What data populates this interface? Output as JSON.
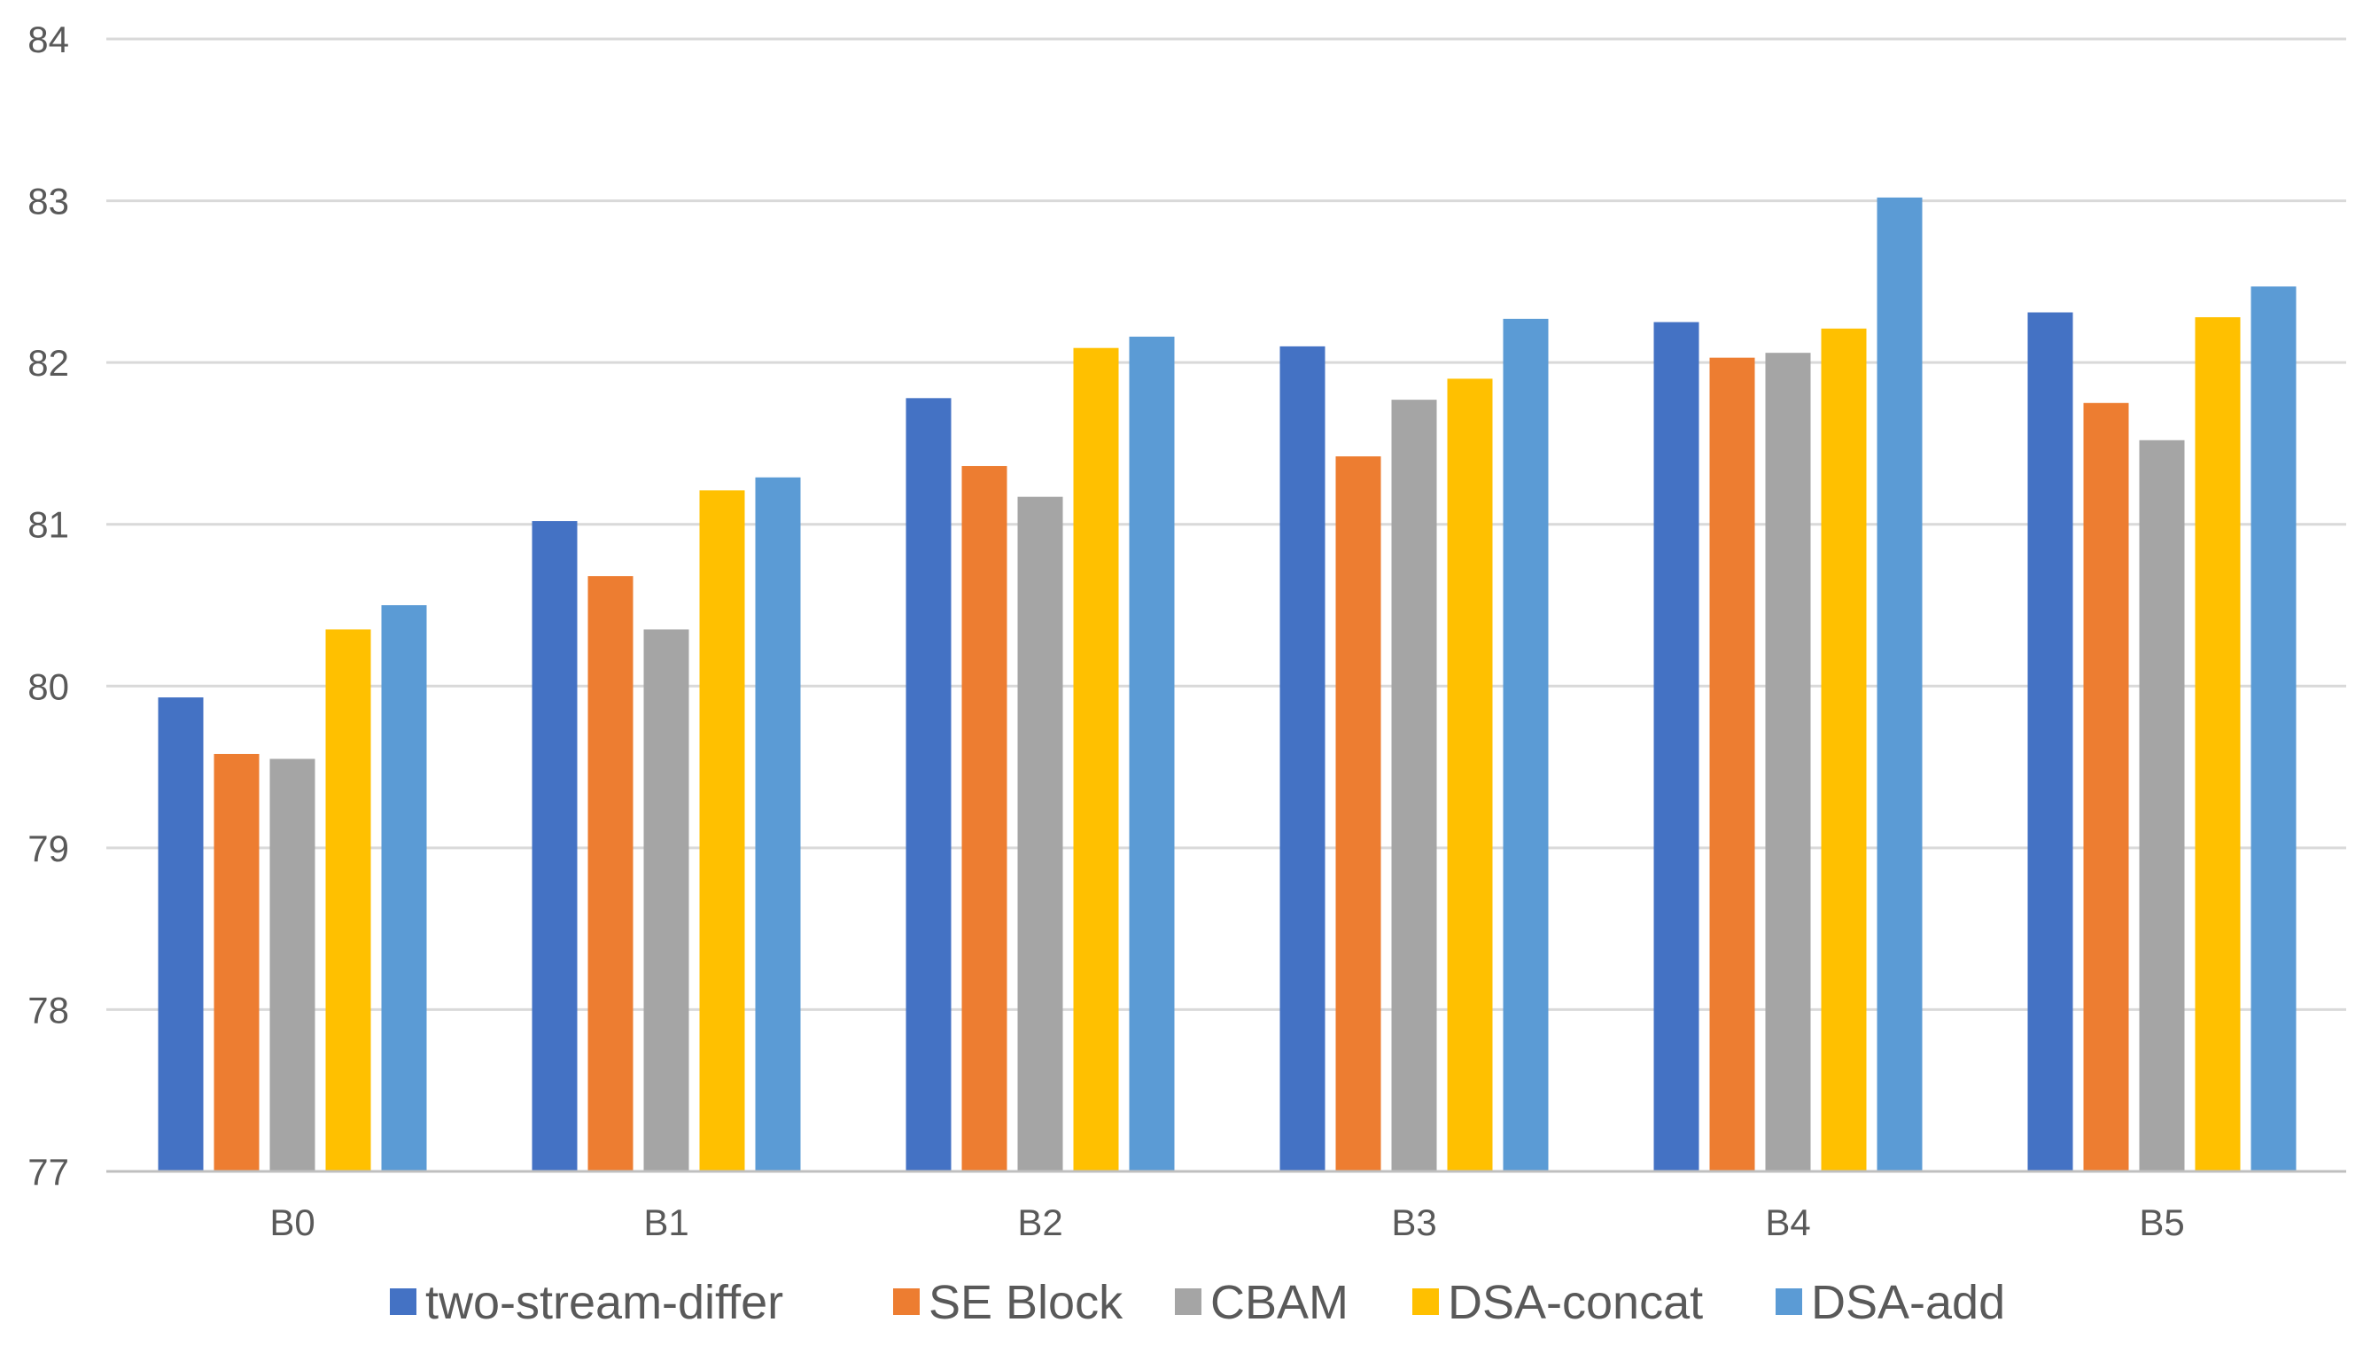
{
  "chart_data": {
    "type": "bar",
    "title": "",
    "xlabel": "",
    "ylabel": "",
    "ylim": [
      77,
      84
    ],
    "yticks": [
      "77",
      "78",
      "79",
      "80",
      "81",
      "82",
      "83",
      "84"
    ],
    "grid": true,
    "legend_position": "bottom",
    "categories": [
      "B0",
      "B1",
      "B2",
      "B3",
      "B4",
      "B5"
    ],
    "series": [
      {
        "name": "two-stream-differ",
        "color": "#4472C4",
        "values": [
          79.93,
          81.02,
          81.78,
          82.1,
          82.25,
          82.31
        ]
      },
      {
        "name": "SE Block",
        "color": "#ED7D31",
        "values": [
          79.58,
          80.68,
          81.36,
          81.42,
          82.03,
          81.75
        ]
      },
      {
        "name": "CBAM",
        "color": "#A5A5A5",
        "values": [
          79.55,
          80.35,
          81.17,
          81.77,
          82.06,
          81.52
        ]
      },
      {
        "name": "DSA-concat",
        "color": "#FFC000",
        "values": [
          80.35,
          81.21,
          82.09,
          81.9,
          82.21,
          82.28
        ]
      },
      {
        "name": "DSA-add",
        "color": "#5B9BD5",
        "values": [
          80.5,
          81.29,
          82.16,
          82.27,
          83.02,
          82.47
        ]
      }
    ]
  }
}
